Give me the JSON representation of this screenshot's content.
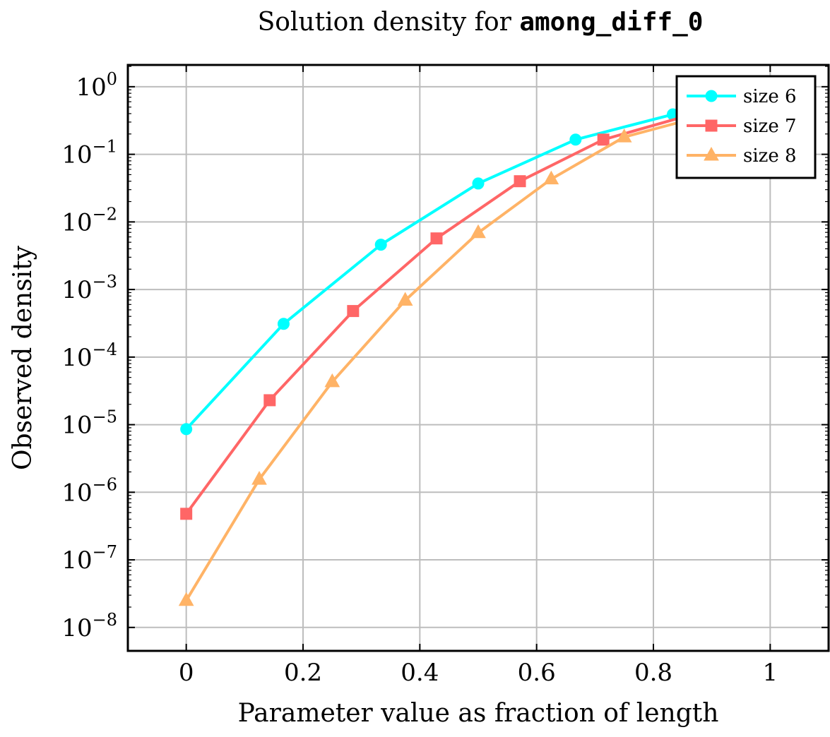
{
  "chart_data": {
    "type": "line",
    "title": {
      "prefix": "Solution density for ",
      "code": "among_diff_0"
    },
    "xlabel": "Parameter value as fraction of length",
    "ylabel": "Observed density",
    "xlim": [
      -0.1,
      1.1
    ],
    "ylim": [
      4.5e-09,
      2.1
    ],
    "yscale": "log",
    "grid": true,
    "legend_position": "top-right",
    "x_ticks": [
      {
        "value": 0,
        "label": "0"
      },
      {
        "value": 0.2,
        "label": "0.2"
      },
      {
        "value": 0.4,
        "label": "0.4"
      },
      {
        "value": 0.6,
        "label": "0.6"
      },
      {
        "value": 0.8,
        "label": "0.8"
      },
      {
        "value": 1,
        "label": "1"
      }
    ],
    "y_ticks": [
      {
        "exp": 0,
        "base": "10",
        "sup": "0"
      },
      {
        "exp": -1,
        "base": "10",
        "sup": "−1"
      },
      {
        "exp": -2,
        "base": "10",
        "sup": "−2"
      },
      {
        "exp": -3,
        "base": "10",
        "sup": "−3"
      },
      {
        "exp": -4,
        "base": "10",
        "sup": "−4"
      },
      {
        "exp": -5,
        "base": "10",
        "sup": "−5"
      },
      {
        "exp": -6,
        "base": "10",
        "sup": "−6"
      },
      {
        "exp": -7,
        "base": "10",
        "sup": "−7"
      },
      {
        "exp": -8,
        "base": "10",
        "sup": "−8"
      }
    ],
    "series": [
      {
        "name": "size 6",
        "color": "#00ffff",
        "marker": "circle",
        "x": [
          0,
          0.1667,
          0.3333,
          0.5,
          0.6667,
          0.8333,
          1
        ],
        "y": [
          8.6e-06,
          0.00031,
          0.0046,
          0.037,
          0.165,
          0.39,
          1
        ]
      },
      {
        "name": "size 7",
        "color": "#ff6666",
        "marker": "square",
        "x": [
          0,
          0.1429,
          0.2857,
          0.4286,
          0.5714,
          0.7143,
          0.8571,
          1
        ],
        "y": [
          4.8e-07,
          2.3e-05,
          0.00048,
          0.0057,
          0.04,
          0.165,
          0.37,
          1
        ]
      },
      {
        "name": "size 8",
        "color": "#ffb366",
        "marker": "triangle",
        "x": [
          0,
          0.125,
          0.25,
          0.375,
          0.5,
          0.625,
          0.75,
          0.875,
          1
        ],
        "y": [
          2.5e-08,
          1.55e-06,
          4.3e-05,
          0.00069,
          0.0069,
          0.043,
          0.18,
          0.35,
          1
        ]
      }
    ]
  }
}
